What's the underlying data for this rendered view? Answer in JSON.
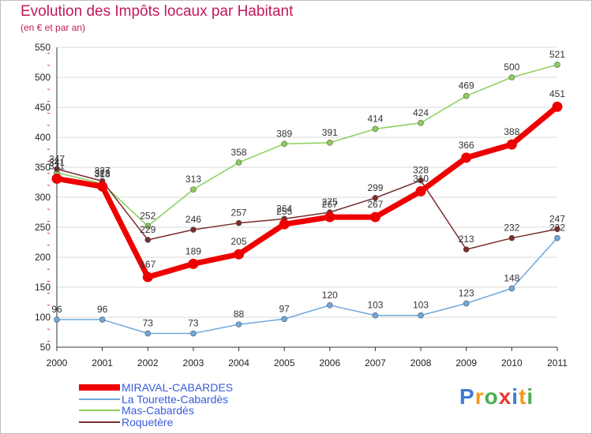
{
  "chart_data": {
    "type": "line",
    "title": "Evolution des Impôts locaux par Habitant",
    "subtitle": "(en € et par an)",
    "xlabel": "",
    "ylabel": "",
    "x": [
      "2000",
      "2001",
      "2002",
      "2003",
      "2004",
      "2005",
      "2006",
      "2007",
      "2008",
      "2009",
      "2010",
      "2011"
    ],
    "ylim": [
      50,
      550
    ],
    "yticks": [
      50,
      100,
      150,
      200,
      250,
      300,
      350,
      400,
      450,
      500,
      550
    ],
    "series": [
      {
        "name": "MIRAVAL-CABARDES",
        "color": "#ee0000",
        "values": [
          331,
          318,
          167,
          189,
          205,
          255,
          267,
          267,
          310,
          366,
          388,
          451
        ]
      },
      {
        "name": "La Tourette-Cabardès",
        "color": "#6fa8dc",
        "values": [
          96,
          96,
          73,
          73,
          88,
          97,
          120,
          103,
          103,
          123,
          148,
          232
        ]
      },
      {
        "name": "Mas-Cabardès",
        "color": "#8bcf5a",
        "values": [
          341,
          323,
          252,
          313,
          358,
          389,
          391,
          414,
          424,
          469,
          500,
          521
        ]
      },
      {
        "name": "Roquetère",
        "color": "#7a2e2e",
        "values": [
          347,
          327,
          229,
          246,
          257,
          264,
          275,
          299,
          328,
          213,
          232,
          247
        ]
      }
    ],
    "legend_position": "bottom-left",
    "grid": true
  },
  "logo": {
    "text": "Proxiti",
    "colors": [
      "#3b7dd8",
      "#f29b1d",
      "#4caf50",
      "#e53935",
      "#3b7dd8",
      "#f29b1d",
      "#4caf50"
    ]
  }
}
